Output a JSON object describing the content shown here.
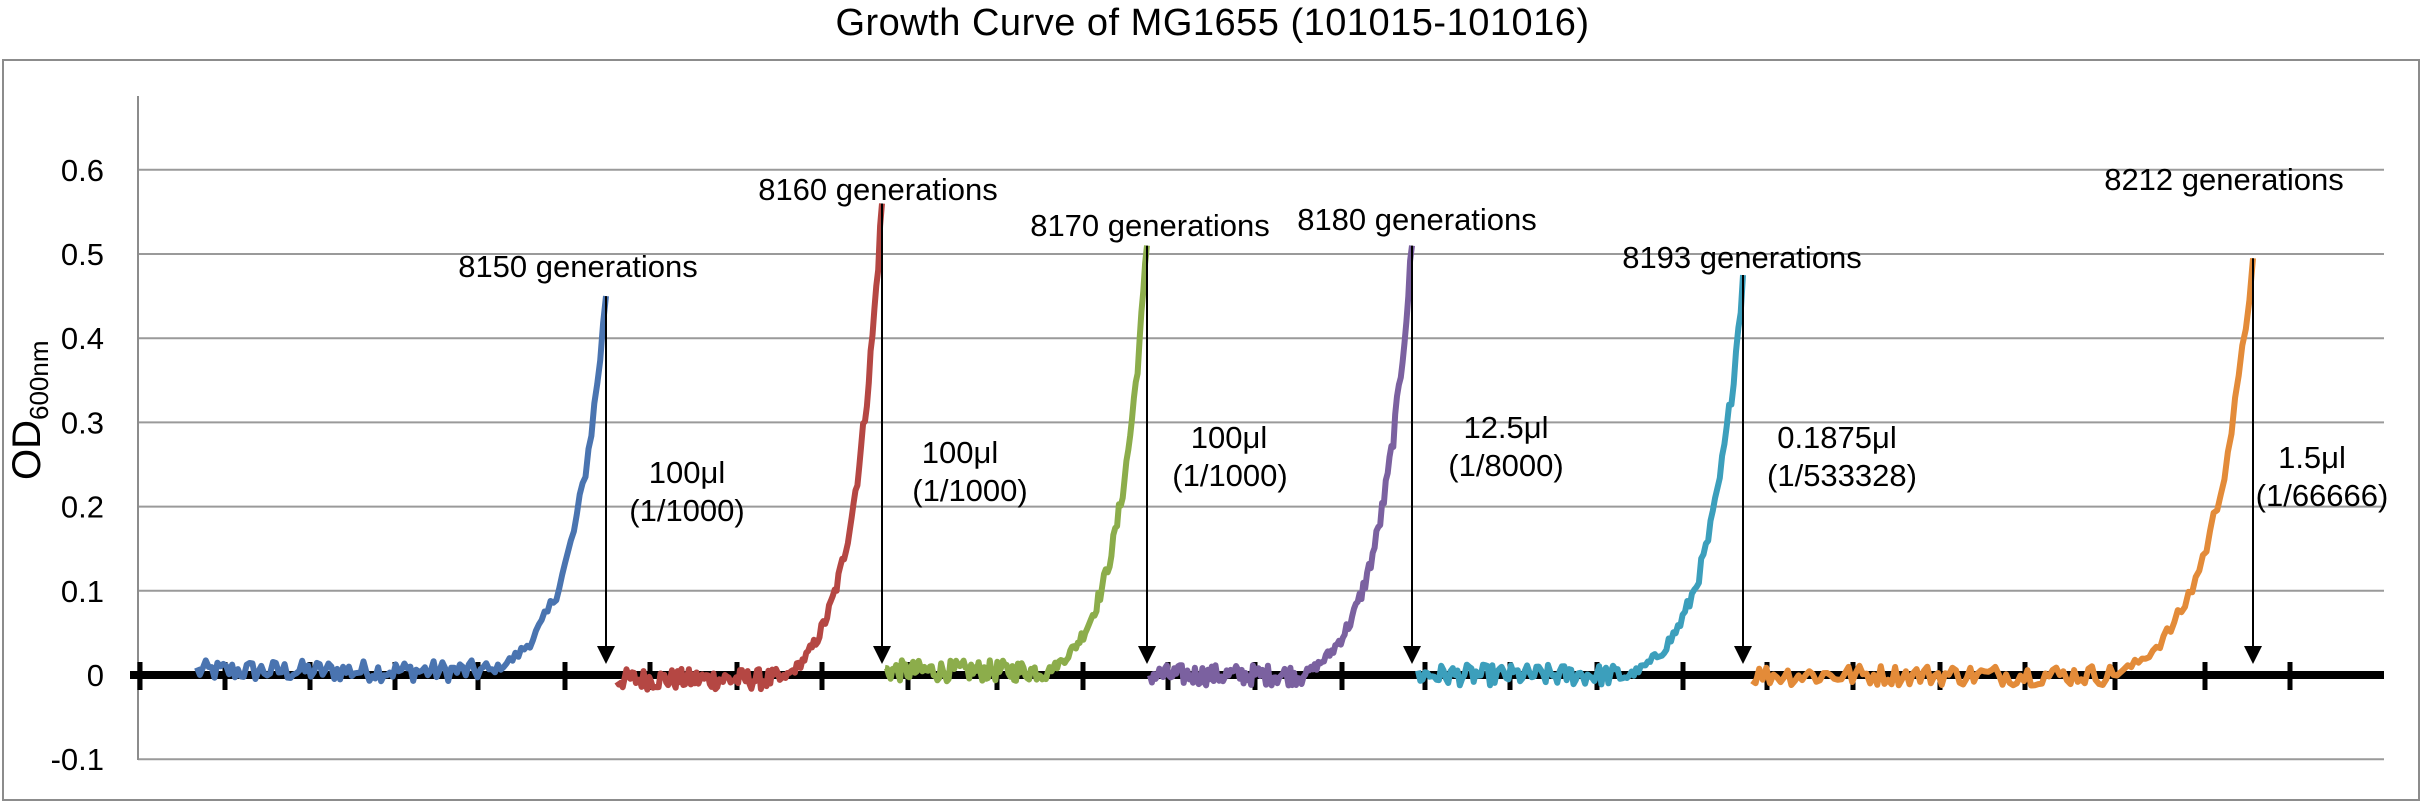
{
  "chart_data": {
    "type": "line",
    "title": "Growth Curve of MG1655 (101015-101016)",
    "ylabel": "OD",
    "ylabel_subscript": "600nm",
    "ylim": [
      -0.1,
      0.65
    ],
    "yticks": [
      -0.1,
      0,
      0.1,
      0.2,
      0.3,
      0.4,
      0.5,
      0.6
    ],
    "ytick_labels": [
      "-0.1",
      "0",
      "0.1",
      "0.2",
      "0.3",
      "0.4",
      "0.5",
      "0.6"
    ],
    "grid": true,
    "legend": "none",
    "colors": [
      "#4a74b0",
      "#b54743",
      "#8cad4b",
      "#7b61a0",
      "#3c9fbc",
      "#e38b39"
    ],
    "series": [
      {
        "start_od": 0.005,
        "peak_od": 0.45
      },
      {
        "start_od": -0.005,
        "peak_od": 0.56
      },
      {
        "start_od": 0.005,
        "peak_od": 0.51
      },
      {
        "start_od": 0.0,
        "peak_od": 0.51
      },
      {
        "start_od": 0.0,
        "peak_od": 0.475
      },
      {
        "start_od": 0.0,
        "peak_od": 0.495
      }
    ],
    "annotations": [
      {
        "generation": "8150 generations",
        "volume": "100μl",
        "dilution": "(1/1000)"
      },
      {
        "generation": "8160 generations",
        "volume": "100μl",
        "dilution": "(1/1000)"
      },
      {
        "generation": "8170 generations",
        "volume": "100μl",
        "dilution": "(1/1000)"
      },
      {
        "generation": "8180 generations",
        "volume": "12.5μl",
        "dilution": "(1/8000)"
      },
      {
        "generation": "8193 generations",
        "volume": "0.1875μl",
        "dilution": "(1/533328)"
      },
      {
        "generation": "8212 generations",
        "volume": "1.5μl",
        "dilution": "(1/66666)"
      }
    ]
  }
}
